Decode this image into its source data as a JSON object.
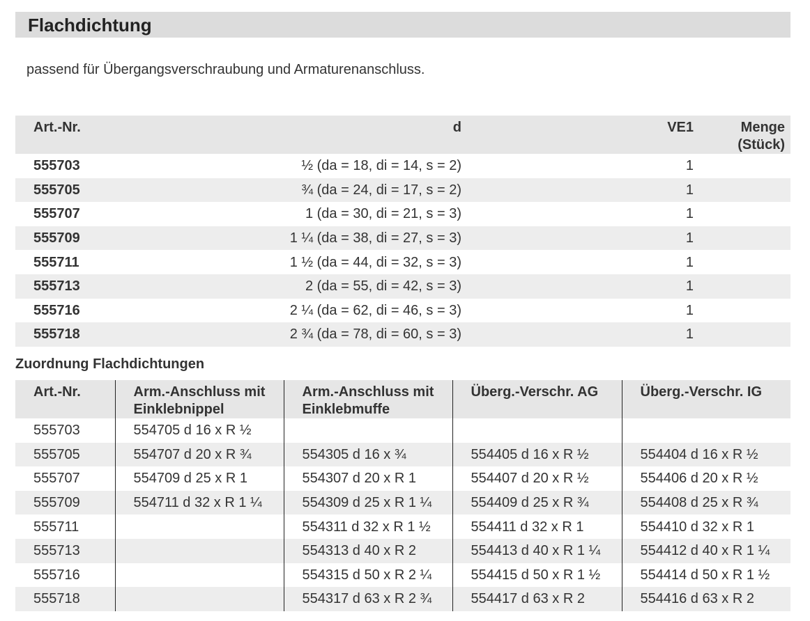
{
  "title": "Flachdichtung",
  "subtitle": "passend für Übergangsverschraubung und Armaturenanschluss.",
  "table1": {
    "headers": [
      "Art.-Nr.",
      "d",
      "VE1",
      "Menge (Stück)"
    ],
    "rows": [
      {
        "art": "555703",
        "d": "½ (da = 18, di = 14, s = 2)",
        "ve1": "1",
        "menge": ""
      },
      {
        "art": "555705",
        "d": "¾ (da = 24, di = 17, s = 2)",
        "ve1": "1",
        "menge": ""
      },
      {
        "art": "555707",
        "d": "1 (da = 30, di = 21, s = 3)",
        "ve1": "1",
        "menge": ""
      },
      {
        "art": "555709",
        "d": "1 ¼ (da = 38, di = 27, s = 3)",
        "ve1": "1",
        "menge": ""
      },
      {
        "art": "555711",
        "d": "1 ½ (da = 44, di = 32, s = 3)",
        "ve1": "1",
        "menge": ""
      },
      {
        "art": "555713",
        "d": "2 (da = 55, di = 42, s = 3)",
        "ve1": "1",
        "menge": ""
      },
      {
        "art": "555716",
        "d": "2 ¼ (da = 62, di = 46, s = 3)",
        "ve1": "1",
        "menge": ""
      },
      {
        "art": "555718",
        "d": "2 ¾ (da = 78, di = 60, s = 3)",
        "ve1": "1",
        "menge": ""
      }
    ]
  },
  "section2_title": "Zuordnung Flachdichtungen",
  "table2": {
    "headers": [
      "Art.-Nr.",
      "Arm.-Anschluss mit Einklebnippel",
      "Arm.-Anschluss mit Einklebmuffe",
      "Überg.-Verschr. AG",
      "Überg.-Verschr. IG"
    ],
    "rows": [
      [
        "555703",
        "554705  d 16 x R ½",
        "",
        "",
        ""
      ],
      [
        "555705",
        "554707  d 20 x R ¾",
        "554305  d 16 x ¾",
        "554405  d 16 x R ½",
        "554404  d 16 x R ½"
      ],
      [
        "555707",
        "554709  d 25 x R 1",
        "554307  d 20 x R 1",
        "554407  d 20 x R ½",
        "554406  d 20 x R ½"
      ],
      [
        "555709",
        "554711  d 32 x R 1 ¼",
        "554309  d 25 x R 1 ¼",
        "554409  d 25 x R ¾",
        "554408  d 25 x R ¾"
      ],
      [
        "555711",
        "",
        "554311  d 32 x R 1 ½",
        "554411  d 32 x R 1",
        "554410  d 32 x R 1"
      ],
      [
        "555713",
        "",
        "554313  d 40 x R 2",
        "554413  d 40 x R 1 ¼",
        "554412  d 40 x R 1 ¼"
      ],
      [
        "555716",
        "",
        "554315  d 50 x R 2 ¼",
        "554415  d 50 x R 1 ½",
        "554414  d 50 x R 1 ½"
      ],
      [
        "555718",
        "",
        "554317  d 63 x R 2 ¾",
        "554417  d 63 x R 2",
        "554416  d 63 x R 2"
      ]
    ]
  }
}
